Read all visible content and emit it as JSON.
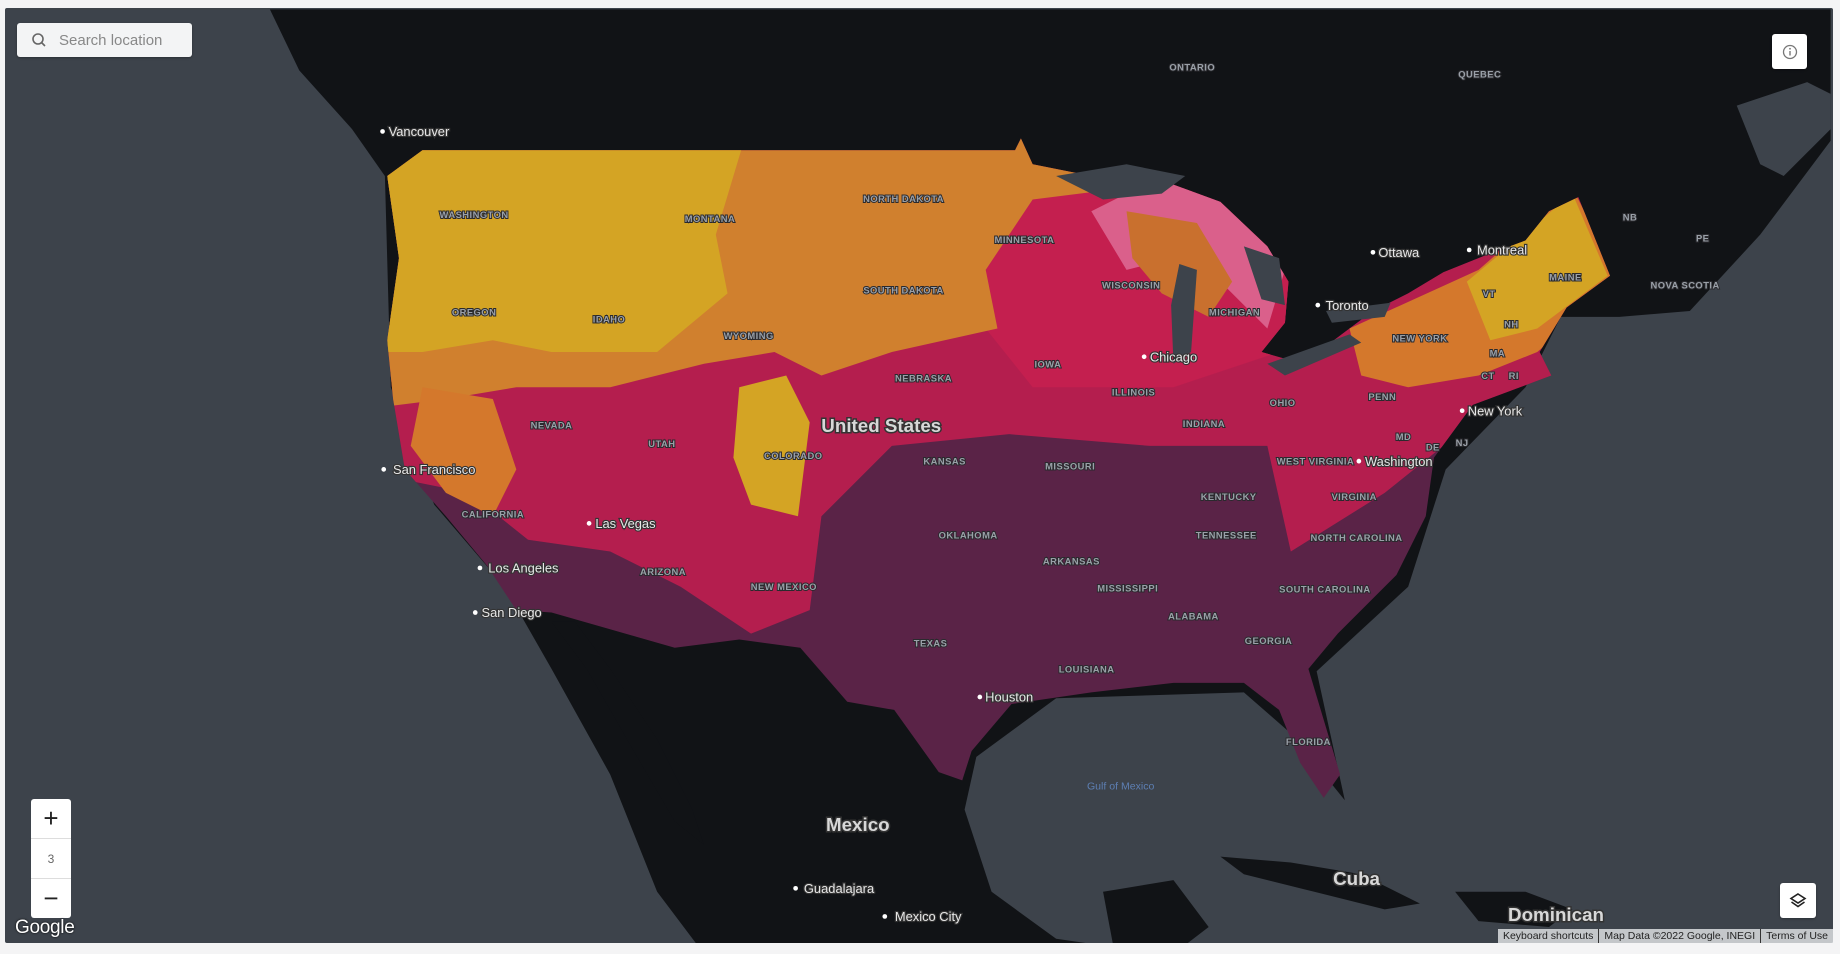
{
  "search": {
    "placeholder": "Search location",
    "icon": "search-icon"
  },
  "controls": {
    "zoom_in": "+",
    "zoom_level": "3",
    "zoom_out": "−",
    "info_icon": "info-icon",
    "layers_icon": "layers-icon"
  },
  "logo": "Google",
  "attribution": {
    "shortcuts": "Keyboard shortcuts",
    "map_data": "Map Data ©2022 Google, INEGI",
    "terms": "Terms of Use"
  },
  "colors": {
    "water": "#3d434b",
    "land": "#111316",
    "heat_low": "#d4a424",
    "heat_mid": "#d4782c",
    "heat_high": "#c41f4f",
    "heat_max": "#5a2347"
  },
  "labels": {
    "countries": [
      "United States",
      "Mexico",
      "Cuba",
      "Dominican"
    ],
    "water": [
      "Gulf of Mexico"
    ],
    "cities": [
      "Vancouver",
      "Ottawa",
      "Montreal",
      "Toronto",
      "Chicago",
      "New York",
      "Washington",
      "San Francisco",
      "Las Vegas",
      "Los Angeles",
      "San Diego",
      "Houston",
      "Guadalajara",
      "Mexico City"
    ],
    "regions": [
      "ONTARIO",
      "QUEBEC",
      "WASHINGTON",
      "MONTANA",
      "NORTH DAKOTA",
      "MINNESOTA",
      "OREGON",
      "IDAHO",
      "SOUTH DAKOTA",
      "WYOMING",
      "WISCONSIN",
      "MICHIGAN",
      "NB",
      "PE",
      "MAINE",
      "NOVA SCOTIA",
      "VT",
      "NH",
      "NEW YORK",
      "MA",
      "CT",
      "RI",
      "NEBRASKA",
      "IOWA",
      "ILLINOIS",
      "OHIO",
      "PENN",
      "NEVADA",
      "UTAH",
      "COLORADO",
      "KANSAS",
      "MISSOURI",
      "INDIANA",
      "MD",
      "DE",
      "NJ",
      "WEST VIRGINIA",
      "CALIFORNIA",
      "KENTUCKY",
      "VIRGINIA",
      "OKLAHOMA",
      "TENNESSEE",
      "NORTH CAROLINA",
      "ARKANSAS",
      "ARIZONA",
      "NEW MEXICO",
      "MISSISSIPPI",
      "SOUTH CAROLINA",
      "ALABAMA",
      "GEORGIA",
      "TEXAS",
      "LOUISIANA",
      "FLORIDA"
    ]
  }
}
